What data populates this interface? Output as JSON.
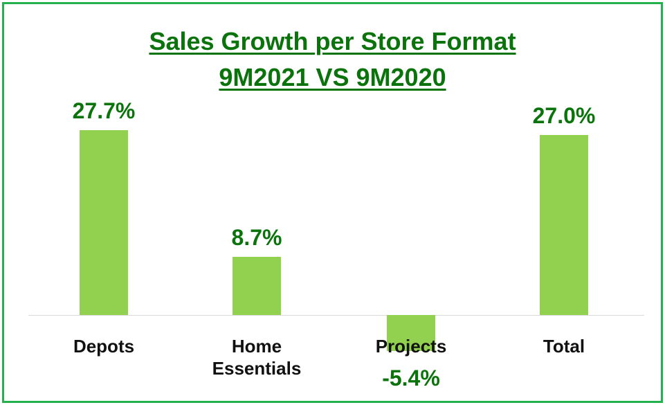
{
  "chart_data": {
    "type": "bar",
    "title": "Sales Growth per Store Format",
    "subtitle": "9M2021 VS 9M2020",
    "categories": [
      "Depots",
      "Home Essentials",
      "Projects",
      "Total"
    ],
    "values": [
      27.7,
      8.7,
      -5.4,
      27.0
    ],
    "value_labels": [
      "27.7%",
      "8.7%",
      "-5.4%",
      "27.0%"
    ],
    "color": "#92d050"
  }
}
